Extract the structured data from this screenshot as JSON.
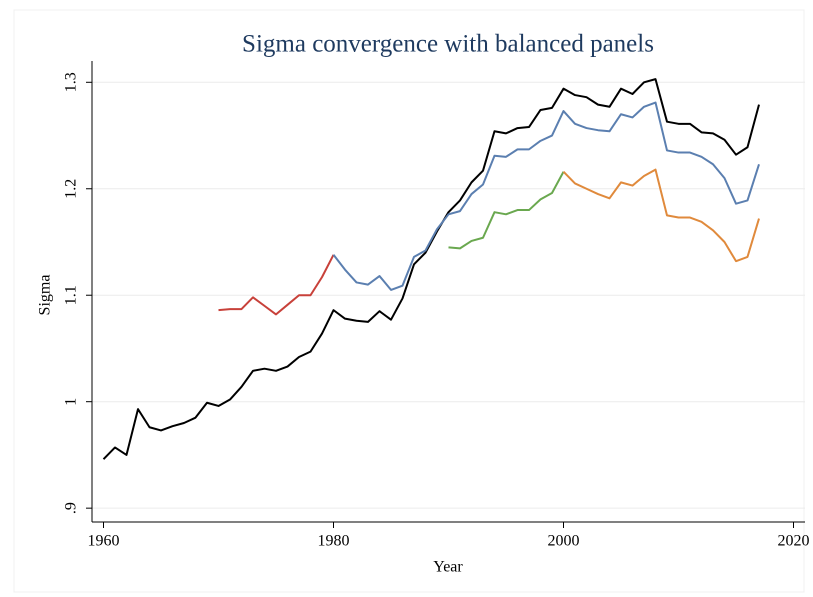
{
  "chart_data": {
    "type": "line",
    "title": "Sigma convergence with balanced panels",
    "x_label": "Year",
    "y_label": "Sigma",
    "xlim": [
      1959,
      2021
    ],
    "ylim": [
      0.887,
      1.32
    ],
    "xticks": [
      1960,
      1980,
      2000,
      2020
    ],
    "yticks": [
      {
        "value": 0.9,
        "label": ".9"
      },
      1,
      1.1,
      1.2,
      1.3
    ],
    "grid": true,
    "series": [
      {
        "color": "#000000",
        "x": [
          1960,
          1961,
          1962,
          1963,
          1964,
          1965,
          1966,
          1967,
          1968,
          1969,
          1970,
          1971,
          1972,
          1973,
          1974,
          1975,
          1976,
          1977,
          1978,
          1979,
          1980,
          1981,
          1982,
          1983,
          1984,
          1985,
          1986,
          1987,
          1988,
          1989,
          1990,
          1991,
          1992,
          1993,
          1994,
          1995,
          1996,
          1997,
          1998,
          1999,
          2000,
          2001,
          2002,
          2003,
          2004,
          2005,
          2006,
          2007,
          2008,
          2009,
          2010,
          2011,
          2012,
          2013,
          2014,
          2015,
          2016,
          2017
        ],
        "values": [
          0.946,
          0.957,
          0.95,
          0.993,
          0.976,
          0.973,
          0.977,
          0.98,
          0.985,
          0.999,
          0.996,
          1.002,
          1.014,
          1.029,
          1.031,
          1.029,
          1.033,
          1.042,
          1.047,
          1.064,
          1.086,
          1.078,
          1.076,
          1.075,
          1.085,
          1.077,
          1.097,
          1.129,
          1.14,
          1.16,
          1.178,
          1.189,
          1.206,
          1.217,
          1.254,
          1.252,
          1.257,
          1.258,
          1.274,
          1.276,
          1.294,
          1.288,
          1.286,
          1.279,
          1.277,
          1.294,
          1.289,
          1.3,
          1.303,
          1.263,
          1.261,
          1.261,
          1.253,
          1.252,
          1.246,
          1.232,
          1.239,
          1.279
        ]
      },
      {
        "color": "#c8413a",
        "x": [
          1970,
          1971,
          1972,
          1973,
          1974,
          1975,
          1976,
          1977,
          1978,
          1979,
          1980
        ],
        "values": [
          1.086,
          1.087,
          1.087,
          1.098,
          1.09,
          1.082,
          1.091,
          1.1,
          1.1,
          1.117,
          1.138
        ]
      },
      {
        "color": "#5b7fb0",
        "x": [
          1980,
          1981,
          1982,
          1983,
          1984,
          1985,
          1986,
          1987,
          1988,
          1989,
          1990,
          1991,
          1992,
          1993,
          1994,
          1995,
          1996,
          1997,
          1998,
          1999,
          2000,
          2001,
          2002,
          2003,
          2004,
          2005,
          2006,
          2007,
          2008,
          2009,
          2010,
          2011,
          2012,
          2013,
          2014,
          2015,
          2016,
          2017
        ],
        "values": [
          1.138,
          1.124,
          1.112,
          1.11,
          1.118,
          1.105,
          1.109,
          1.136,
          1.142,
          1.162,
          1.176,
          1.179,
          1.195,
          1.204,
          1.231,
          1.23,
          1.237,
          1.237,
          1.245,
          1.25,
          1.273,
          1.261,
          1.257,
          1.255,
          1.254,
          1.27,
          1.267,
          1.277,
          1.281,
          1.236,
          1.234,
          1.234,
          1.23,
          1.223,
          1.21,
          1.186,
          1.189,
          1.223
        ]
      },
      {
        "color": "#6aa84f",
        "x": [
          1990,
          1991,
          1992,
          1993,
          1994,
          1995,
          1996,
          1997,
          1998,
          1999,
          2000
        ],
        "values": [
          1.145,
          1.144,
          1.151,
          1.154,
          1.178,
          1.176,
          1.18,
          1.18,
          1.19,
          1.196,
          1.216
        ]
      },
      {
        "color": "#e08a3c",
        "x": [
          2000,
          2001,
          2002,
          2003,
          2004,
          2005,
          2006,
          2007,
          2008,
          2009,
          2010,
          2011,
          2012,
          2013,
          2014,
          2015,
          2016,
          2017
        ],
        "values": [
          1.216,
          1.205,
          1.2,
          1.195,
          1.191,
          1.206,
          1.203,
          1.212,
          1.218,
          1.175,
          1.173,
          1.173,
          1.169,
          1.161,
          1.15,
          1.132,
          1.136,
          1.172
        ]
      }
    ]
  }
}
